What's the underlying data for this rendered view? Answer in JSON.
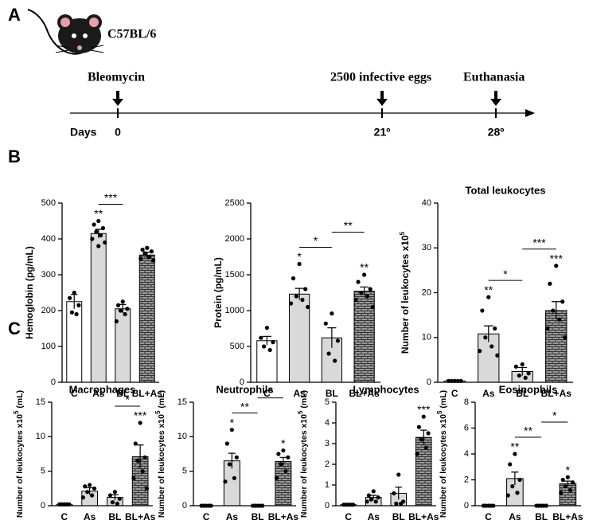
{
  "figure": {
    "panel_labels": [
      "A",
      "B",
      "C"
    ],
    "strain": "C57BL/6",
    "timeline": {
      "axis_label": "Days",
      "events": [
        {
          "label": "Bleomycin",
          "day": "0"
        },
        {
          "label": "2500 infective eggs",
          "day": "21º"
        },
        {
          "label": "Euthanasia",
          "day": "28º"
        }
      ]
    }
  },
  "chart_data": [
    {
      "type": "bar",
      "ylabel": "Hemoglobin (pg/mL)",
      "categories": [
        "C",
        "As",
        "BL",
        "BL+As"
      ],
      "values": [
        225,
        415,
        205,
        355
      ],
      "errors": [
        20,
        12,
        12,
        8
      ],
      "points": [
        [
          250,
          235,
          215,
          195,
          190
        ],
        [
          450,
          440,
          430,
          420,
          410,
          400,
          390,
          380
        ],
        [
          225,
          215,
          205,
          200,
          190,
          170
        ],
        [
          375,
          370,
          365,
          360,
          350,
          345,
          340
        ]
      ],
      "colors": [
        "#ffffff",
        "#d9d9d9",
        "#d9d9d9",
        "#8c8c8c"
      ],
      "patterns": [
        false,
        false,
        false,
        true
      ],
      "ylim": [
        0,
        500
      ],
      "yticks": [
        0,
        100,
        200,
        300,
        400,
        500
      ],
      "annotations": [
        {
          "text": "**",
          "over": 1
        },
        {
          "text": "***",
          "bracket": [
            1,
            2
          ]
        }
      ]
    },
    {
      "type": "bar",
      "ylabel": "Protein (pg/mL)",
      "categories": [
        "C",
        "As",
        "BL",
        "BL+As"
      ],
      "values": [
        580,
        1230,
        620,
        1270
      ],
      "errors": [
        60,
        80,
        140,
        60
      ],
      "points": [
        [
          760,
          620,
          560,
          500,
          450
        ],
        [
          1650,
          1450,
          1300,
          1200,
          1150,
          1100,
          1050
        ],
        [
          960,
          820,
          580,
          400,
          300
        ],
        [
          1500,
          1400,
          1300,
          1250,
          1200,
          1150,
          1050
        ]
      ],
      "colors": [
        "#ffffff",
        "#d9d9d9",
        "#d9d9d9",
        "#8c8c8c"
      ],
      "patterns": [
        false,
        false,
        false,
        true
      ],
      "ylim": [
        0,
        2500
      ],
      "yticks": [
        0,
        500,
        1000,
        1500,
        2000,
        2500
      ],
      "annotations": [
        {
          "text": "*",
          "over": 1
        },
        {
          "text": "**",
          "over": 3
        },
        {
          "text": "*",
          "bracket": [
            1,
            2
          ]
        },
        {
          "text": "**",
          "bracket": [
            2,
            3
          ]
        }
      ]
    },
    {
      "type": "bar",
      "title": "Total leukocytes",
      "ylabel": "Number of leukocytes x10",
      "ylabel_sup": "5",
      "categories": [
        "C",
        "As",
        "BL",
        "BL+As"
      ],
      "values": [
        0.3,
        10.8,
        2.4,
        16
      ],
      "errors": [
        0.1,
        1.8,
        0.9,
        2
      ],
      "points": [
        [
          0.3,
          0.3,
          0.3,
          0.3,
          0.3
        ],
        [
          19,
          16,
          12,
          10,
          8,
          7,
          6
        ],
        [
          4,
          3.5,
          2,
          1.5,
          1
        ],
        [
          26,
          22,
          18,
          16,
          14,
          12,
          10
        ]
      ],
      "colors": [
        "#ffffff",
        "#d9d9d9",
        "#d9d9d9",
        "#8c8c8c"
      ],
      "patterns": [
        false,
        false,
        false,
        true
      ],
      "ylim": [
        0,
        40
      ],
      "yticks": [
        0,
        10,
        20,
        30,
        40
      ],
      "annotations": [
        {
          "text": "**",
          "over": 1
        },
        {
          "text": "***",
          "over": 3
        },
        {
          "text": "*",
          "bracket": [
            1,
            2
          ]
        },
        {
          "text": "***",
          "bracket": [
            2,
            3
          ]
        }
      ]
    },
    {
      "type": "bar",
      "title": "Macrophages",
      "ylabel": "Number of leukocytes x10",
      "ylabel_sup": "5",
      "ylabel_end": " (mL)",
      "categories": [
        "C",
        "As",
        "BL",
        "BL+As"
      ],
      "values": [
        0.2,
        2.1,
        1.2,
        7.1
      ],
      "errors": [
        0.1,
        0.5,
        0.4,
        1.7
      ],
      "points": [
        [
          0.2,
          0.2,
          0.2,
          0.2,
          0.2
        ],
        [
          3,
          2.8,
          2.5,
          2,
          1.5,
          1.2
        ],
        [
          2,
          1.5,
          1,
          0.5,
          0.3
        ],
        [
          12,
          9,
          7,
          6.5,
          5,
          4,
          2.5
        ]
      ],
      "colors": [
        "#ffffff",
        "#d9d9d9",
        "#d9d9d9",
        "#8c8c8c"
      ],
      "patterns": [
        false,
        false,
        false,
        true
      ],
      "ylim": [
        0,
        15
      ],
      "yticks": [
        0,
        5,
        10,
        15
      ],
      "annotations": [
        {
          "text": "***",
          "over": 3
        },
        {
          "text": "*",
          "bracket": [
            2,
            3
          ]
        }
      ]
    },
    {
      "type": "bar",
      "title": "Neutrophils",
      "ylabel": "Number of leukocytes x10",
      "ylabel_sup": "5",
      "ylabel_end": " (mL)",
      "categories": [
        "C",
        "As",
        "BL",
        "BL+As"
      ],
      "values": [
        0,
        6.5,
        0,
        6.4
      ],
      "errors": [
        0,
        1.1,
        0,
        0.6
      ],
      "points": [
        [
          0,
          0,
          0,
          0,
          0
        ],
        [
          11,
          9,
          7,
          6,
          4,
          3.5
        ],
        [
          0,
          0,
          0,
          0,
          0
        ],
        [
          8,
          7.5,
          7,
          6,
          5,
          4
        ]
      ],
      "colors": [
        "#ffffff",
        "#d9d9d9",
        "#d9d9d9",
        "#8c8c8c"
      ],
      "patterns": [
        false,
        false,
        false,
        true
      ],
      "ylim": [
        0,
        15
      ],
      "yticks": [
        0,
        5,
        10,
        15
      ],
      "annotations": [
        {
          "text": "*",
          "over": 1
        },
        {
          "text": "*",
          "over": 3
        },
        {
          "text": "**",
          "bracket": [
            1,
            2
          ]
        },
        {
          "text": "*",
          "bracket": [
            2,
            3
          ]
        }
      ]
    },
    {
      "type": "bar",
      "title": "Lymphocytes",
      "ylabel": "Number of leukocytes x10",
      "ylabel_sup": "5",
      "ylabel_end": " (mL)",
      "categories": [
        "C",
        "As",
        "BL",
        "BL+As"
      ],
      "values": [
        0.05,
        0.4,
        0.6,
        3.3
      ],
      "errors": [
        0.02,
        0.1,
        0.3,
        0.35
      ],
      "points": [
        [
          0.05,
          0.05,
          0.05,
          0.05,
          0.05
        ],
        [
          0.7,
          0.5,
          0.4,
          0.3,
          0.2,
          0.2
        ],
        [
          1.5,
          0.6,
          0.2,
          0.1,
          0.1
        ],
        [
          4.3,
          3.8,
          3.5,
          3.2,
          2.8,
          2.5
        ]
      ],
      "colors": [
        "#ffffff",
        "#d9d9d9",
        "#d9d9d9",
        "#8c8c8c"
      ],
      "patterns": [
        false,
        false,
        false,
        true
      ],
      "ylim": [
        0,
        5
      ],
      "yticks": [
        0,
        1,
        2,
        3,
        4,
        5
      ],
      "annotations": [
        {
          "text": "***",
          "over": 3
        }
      ]
    },
    {
      "type": "bar",
      "title": "Eosinophils",
      "ylabel": "Number of leukocytes x10",
      "ylabel_sup": "5",
      "ylabel_end": " (mL)",
      "categories": [
        "C",
        "As",
        "BL",
        "BL+As"
      ],
      "values": [
        0,
        2.1,
        0,
        1.7
      ],
      "errors": [
        0,
        0.5,
        0,
        0.2
      ],
      "points": [
        [
          0,
          0,
          0,
          0,
          0
        ],
        [
          4,
          3.2,
          2,
          1.5,
          1,
          0.8
        ],
        [
          0,
          0,
          0,
          0,
          0
        ],
        [
          2.2,
          2,
          1.8,
          1.5,
          1.2,
          1
        ]
      ],
      "colors": [
        "#ffffff",
        "#d9d9d9",
        "#d9d9d9",
        "#8c8c8c"
      ],
      "patterns": [
        false,
        false,
        false,
        true
      ],
      "ylim": [
        0,
        8
      ],
      "yticks": [
        0,
        2,
        4,
        6,
        8
      ],
      "annotations": [
        {
          "text": "**",
          "over": 1
        },
        {
          "text": "*",
          "over": 3
        },
        {
          "text": "**",
          "bracket": [
            1,
            2
          ]
        },
        {
          "text": "*",
          "bracket": [
            2,
            3
          ]
        }
      ]
    }
  ]
}
